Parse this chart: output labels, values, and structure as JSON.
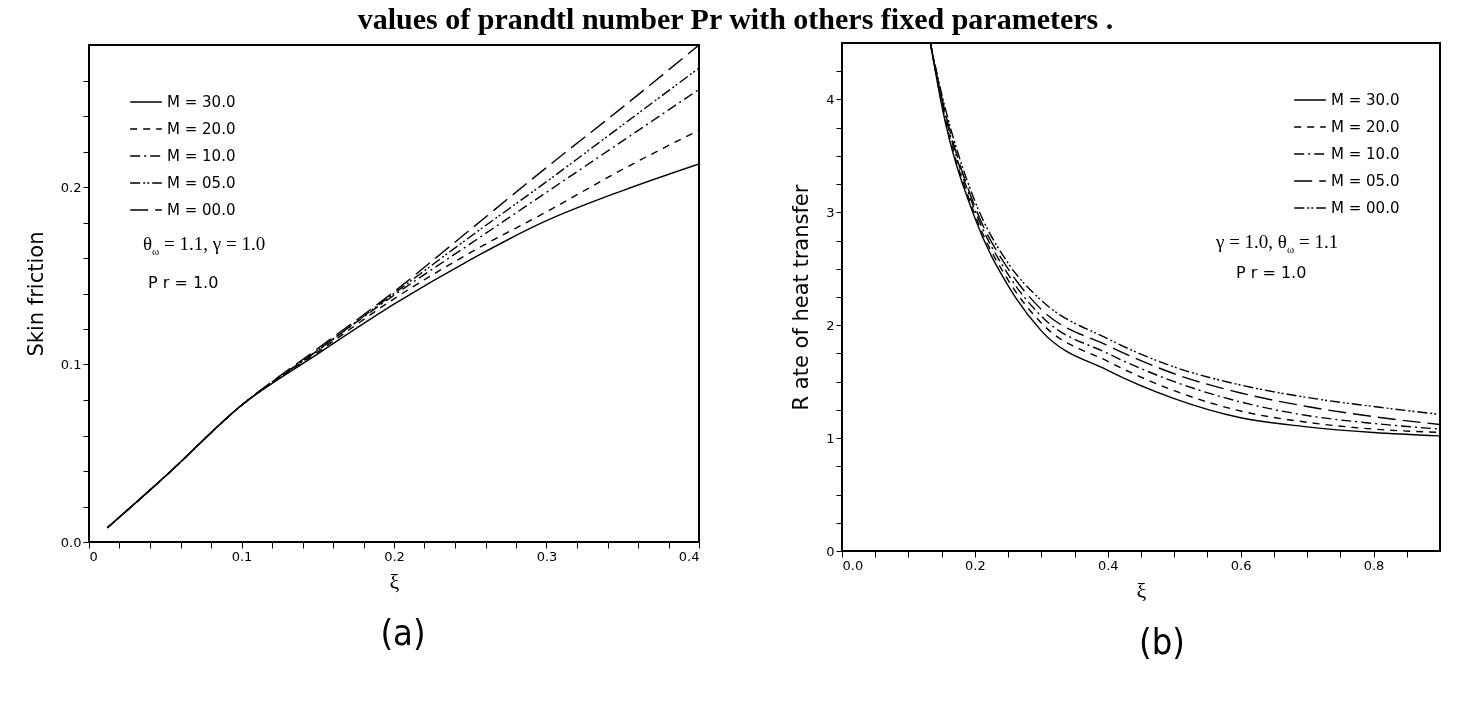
{
  "chart_data": [
    {
      "type": "line",
      "title": "values of prandtl number Pr with others fixed parameters .",
      "xlabel": "ξ",
      "ylabel": "Skin friction",
      "legend": "top left",
      "grid": false,
      "x": [
        0.012,
        0.05,
        0.1,
        0.15,
        0.2,
        0.25,
        0.3,
        0.35,
        0.4
      ],
      "series": [
        {
          "name": "M = 30.0",
          "color": "#000000",
          "line_style": "solid",
          "values": [
            0.008,
            0.037,
            0.077,
            0.106,
            0.134,
            0.159,
            0.181,
            0.198,
            0.213
          ]
        },
        {
          "name": "M = 20.0",
          "color": "#000000",
          "line_style": "dashed",
          "values": [
            0.008,
            0.037,
            0.077,
            0.107,
            0.137,
            0.163,
            0.186,
            0.21,
            0.232
          ]
        },
        {
          "name": "M = 10.0",
          "color": "#000000",
          "line_style": "dotted",
          "values": [
            0.008,
            0.037,
            0.077,
            0.108,
            0.139,
            0.168,
            0.197,
            0.226,
            0.255
          ]
        },
        {
          "name": "M = 05.0",
          "color": "#000000",
          "line_style": "dotted",
          "values": [
            0.008,
            0.037,
            0.077,
            0.108,
            0.14,
            0.172,
            0.203,
            0.235,
            0.267
          ]
        },
        {
          "name": "M = 00.0",
          "color": "#000000",
          "line_style": "dashed",
          "values": [
            0.008,
            0.037,
            0.077,
            0.109,
            0.141,
            0.176,
            0.211,
            0.245,
            0.28
          ]
        }
      ],
      "xlim": [
        0,
        0.4
      ],
      "ylim": [
        0,
        0.28
      ],
      "xticks": [
        0,
        {
          "value": 0.02,
          "label": null
        },
        {
          "value": 0.04,
          "label": null
        },
        {
          "value": 0.06,
          "label": null
        },
        {
          "value": 0.08,
          "label": null
        },
        0.1,
        {
          "value": 0.12,
          "label": null
        },
        {
          "value": 0.14,
          "label": null
        },
        {
          "value": 0.16,
          "label": null
        },
        {
          "value": 0.18,
          "label": null
        },
        0.2,
        {
          "value": 0.22,
          "label": null
        },
        {
          "value": 0.24,
          "label": null
        },
        {
          "value": 0.26,
          "label": null
        },
        {
          "value": 0.28,
          "label": null
        },
        0.3,
        {
          "value": 0.32,
          "label": null
        },
        {
          "value": 0.34,
          "label": null
        },
        {
          "value": 0.36,
          "label": null
        },
        {
          "value": 0.38,
          "label": null
        },
        0.4
      ],
      "yticks": [
        {
          "value": 0,
          "label": "0.0"
        },
        {
          "value": 0.02,
          "label": null
        },
        {
          "value": 0.04,
          "label": null
        },
        {
          "value": 0.06,
          "label": null
        },
        {
          "value": 0.08,
          "label": null
        },
        0.1,
        {
          "value": 0.12,
          "label": null
        },
        {
          "value": 0.14,
          "label": null
        },
        {
          "value": 0.16,
          "label": null
        },
        {
          "value": 0.18,
          "label": null
        },
        0.2,
        {
          "value": 0.22,
          "label": null
        },
        {
          "value": 0.24,
          "label": null
        },
        {
          "value": 0.26,
          "label": null
        }
      ],
      "annotations": [
        "θ$_{ω}$ = 1.1, γ = 1.0",
        "P r = 1.0",
        "(a)"
      ]
    },
    {
      "type": "line",
      "xlabel": "ξ",
      "ylabel": "R ate of heat transfer",
      "legend": "top right",
      "grid": false,
      "x": [
        0.133,
        0.15,
        0.2,
        0.25,
        0.3,
        0.4,
        0.5,
        0.6,
        0.7,
        0.8,
        0.9
      ],
      "series": [
        {
          "name": "M = 30.0",
          "color": "#000000",
          "line_style": "solid",
          "values": [
            4.5,
            3.95,
            2.95,
            2.35,
            1.95,
            1.6,
            1.35,
            1.18,
            1.1,
            1.05,
            1.02
          ]
        },
        {
          "name": "M = 20.0",
          "color": "#000000",
          "line_style": "dashed",
          "values": [
            4.5,
            3.97,
            2.98,
            2.4,
            2.02,
            1.68,
            1.42,
            1.24,
            1.14,
            1.08,
            1.05
          ]
        },
        {
          "name": "M = 10.0",
          "color": "#000000",
          "line_style": "dotted",
          "values": [
            4.5,
            4.0,
            3.02,
            2.45,
            2.08,
            1.75,
            1.5,
            1.32,
            1.2,
            1.13,
            1.08
          ]
        },
        {
          "name": "M = 05.0",
          "color": "#000000",
          "line_style": "dashed",
          "values": [
            4.5,
            4.02,
            3.05,
            2.5,
            2.14,
            1.82,
            1.57,
            1.4,
            1.28,
            1.19,
            1.12
          ]
        },
        {
          "name": "M = 00.0",
          "color": "#000000",
          "line_style": "dotted",
          "values": [
            4.5,
            4.05,
            3.1,
            2.55,
            2.22,
            1.88,
            1.63,
            1.47,
            1.36,
            1.28,
            1.21
          ]
        }
      ],
      "xlim": [
        0,
        0.9
      ],
      "ylim": [
        0,
        4.5
      ],
      "xticks": [
        {
          "value": 0,
          "label": "0.0"
        },
        {
          "value": 0.05,
          "label": null
        },
        {
          "value": 0.1,
          "label": null
        },
        {
          "value": 0.15,
          "label": null
        },
        0.2,
        {
          "value": 0.25,
          "label": null
        },
        {
          "value": 0.3,
          "label": null
        },
        {
          "value": 0.35,
          "label": null
        },
        0.4,
        {
          "value": 0.45,
          "label": null
        },
        {
          "value": 0.5,
          "label": null
        },
        {
          "value": 0.55,
          "label": null
        },
        0.6,
        {
          "value": 0.65,
          "label": null
        },
        {
          "value": 0.7,
          "label": null
        },
        {
          "value": 0.75,
          "label": null
        },
        0.8,
        {
          "value": 0.85,
          "label": null
        }
      ],
      "yticks": [
        0,
        {
          "value": 0.25,
          "label": null
        },
        {
          "value": 0.5,
          "label": null
        },
        {
          "value": 0.75,
          "label": null
        },
        1,
        {
          "value": 1.25,
          "label": null
        },
        {
          "value": 1.5,
          "label": null
        },
        {
          "value": 1.75,
          "label": null
        },
        2,
        {
          "value": 2.25,
          "label": null
        },
        {
          "value": 2.5,
          "label": null
        },
        {
          "value": 2.75,
          "label": null
        },
        3,
        {
          "value": 3.25,
          "label": null
        },
        {
          "value": 3.5,
          "label": null
        },
        {
          "value": 3.75,
          "label": null
        },
        4,
        {
          "value": 4.25,
          "label": null
        }
      ],
      "annotations": [
        "γ = 1.0, θ$_{ω}$ = 1.1",
        "P r = 1.0",
        "(b)"
      ]
    }
  ]
}
